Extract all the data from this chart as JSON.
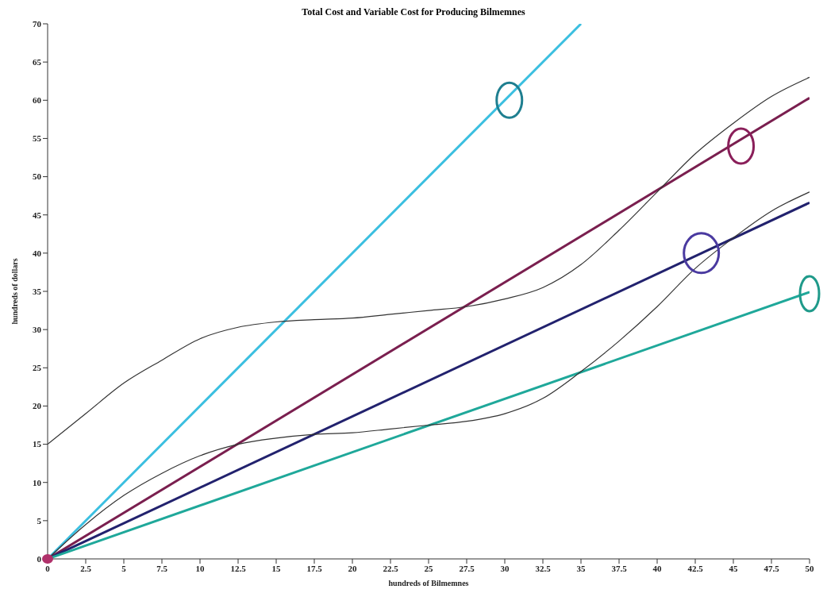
{
  "chart_data": {
    "type": "line",
    "title": "Total Cost and Variable Cost for Producing Bilmemnes",
    "xlabel": "hundreds of Bilmemnes",
    "ylabel": "hundreds of dollars",
    "xlim": [
      0,
      50
    ],
    "xticks": [
      0,
      2.5,
      5,
      7.5,
      10,
      12.5,
      15,
      17.5,
      20,
      22.5,
      25,
      27.5,
      30,
      32.5,
      35,
      37.5,
      40,
      42.5,
      45,
      47.5,
      50
    ],
    "ylim": [
      0,
      70
    ],
    "yticks": [
      0,
      5,
      10,
      15,
      20,
      25,
      30,
      35,
      40,
      45,
      50,
      55,
      60,
      65,
      70
    ],
    "grid": false,
    "legend": false,
    "line_style": "solid",
    "series": [
      {
        "color": "#3bbfe0",
        "x": [
          0,
          35
        ],
        "values": [
          0,
          70
        ]
      },
      {
        "color": "#7a1f4f",
        "x": [
          0,
          50
        ],
        "values": [
          0,
          60.3
        ]
      },
      {
        "color": "#22226e",
        "x": [
          0,
          50
        ],
        "values": [
          0,
          46.6
        ]
      },
      {
        "color": "#1fa89a",
        "x": [
          0,
          50
        ],
        "values": [
          0,
          34.9
        ]
      },
      {
        "color": "#333333",
        "x": [
          0,
          2.5,
          5,
          7.5,
          10,
          12.5,
          15,
          17.5,
          20,
          22.5,
          25,
          27.5,
          30,
          32.5,
          35,
          37.5,
          40,
          42.5,
          45,
          47.5,
          50
        ],
        "values": [
          15,
          19,
          23,
          26,
          28.8,
          30.3,
          31,
          31.3,
          31.5,
          32,
          32.5,
          33,
          34,
          35.5,
          38.5,
          43,
          48,
          53,
          57,
          60.5,
          63
        ]
      },
      {
        "color": "#333333",
        "x": [
          0,
          2.5,
          5,
          7.5,
          10,
          12.5,
          15,
          17.5,
          20,
          22.5,
          25,
          27.5,
          30,
          32.5,
          35,
          37.5,
          40,
          42.5,
          45,
          47.5,
          50
        ],
        "values": [
          0,
          4.5,
          8.3,
          11.2,
          13.5,
          15,
          15.8,
          16.3,
          16.5,
          17,
          17.5,
          18,
          19,
          21,
          24.5,
          28.5,
          33,
          38,
          42,
          45.5,
          48
        ]
      }
    ]
  }
}
